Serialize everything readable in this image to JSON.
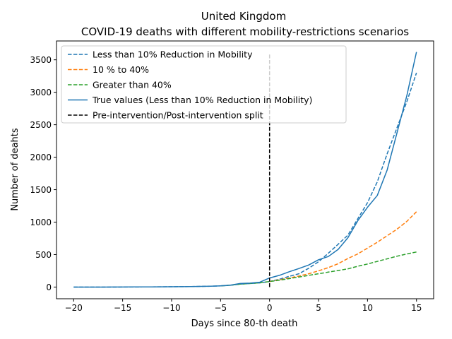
{
  "chart_data": {
    "type": "line",
    "title": "United Kingdom",
    "subtitle": "COVID-19 deaths with different mobility-restrictions scenarios",
    "xlabel": "Days since 80-th death",
    "ylabel": "Number of deahts",
    "xlim": [
      -21.75,
      16.75
    ],
    "ylim": [
      -180,
      3790
    ],
    "xticks": [
      -20,
      -15,
      -10,
      -5,
      0,
      5,
      10,
      15
    ],
    "yticks": [
      0,
      500,
      1000,
      1500,
      2000,
      2500,
      3000,
      3500
    ],
    "grid": false,
    "legend_position": "top-left",
    "series": [
      {
        "name": "Less than 10% Reduction in  Mobility",
        "color": "#1f77b4",
        "dash": "dashed",
        "x": [
          -20,
          -19,
          -18,
          -17,
          -16,
          -15,
          -14,
          -13,
          -12,
          -11,
          -10,
          -9,
          -8,
          -7,
          -6,
          -5,
          -4,
          -3,
          -2,
          -1,
          0,
          1,
          2,
          3,
          4,
          5,
          6,
          7,
          8,
          9,
          10,
          11,
          12,
          13,
          14,
          15
        ],
        "values": [
          0,
          0,
          0,
          0,
          0,
          1,
          1,
          2,
          3,
          4,
          5,
          6,
          8,
          10,
          12,
          18,
          28,
          45,
          55,
          65,
          85,
          120,
          165,
          205,
          290,
          390,
          520,
          660,
          800,
          1050,
          1300,
          1620,
          2050,
          2450,
          2850,
          3300
        ]
      },
      {
        "name": "10 % to 40%",
        "color": "#ff7f0e",
        "dash": "dashed",
        "x": [
          0,
          1,
          2,
          3,
          4,
          5,
          6,
          7,
          8,
          9,
          10,
          11,
          12,
          13,
          14,
          15
        ],
        "values": [
          85,
          110,
          140,
          170,
          205,
          250,
          300,
          360,
          440,
          510,
          600,
          690,
          790,
          890,
          1010,
          1160
        ]
      },
      {
        "name": "Greater than 40%",
        "color": "#2ca02c",
        "dash": "dashed",
        "x": [
          -5,
          -4,
          -3,
          -2,
          -1,
          0,
          1,
          2,
          3,
          4,
          5,
          6,
          7,
          8,
          9,
          10,
          11,
          12,
          13,
          14,
          15
        ],
        "values": [
          18,
          28,
          45,
          55,
          65,
          85,
          105,
          130,
          155,
          180,
          205,
          230,
          255,
          280,
          320,
          355,
          395,
          435,
          475,
          510,
          540
        ]
      },
      {
        "name": "True values (Less than 10% Reduction in  Mobility)",
        "color": "#1f77b4",
        "dash": "solid",
        "x": [
          -20,
          -19,
          -18,
          -17,
          -16,
          -15,
          -14,
          -13,
          -12,
          -11,
          -10,
          -9,
          -8,
          -7,
          -6,
          -5,
          -4,
          -3,
          -2,
          -1,
          0,
          1,
          2,
          3,
          4,
          5,
          6,
          7,
          8,
          9,
          10,
          11,
          12,
          13,
          14,
          15
        ],
        "values": [
          0,
          0,
          0,
          0,
          1,
          1,
          2,
          2,
          3,
          4,
          5,
          6,
          8,
          10,
          12,
          18,
          30,
          55,
          60,
          75,
          140,
          180,
          235,
          285,
          340,
          420,
          470,
          580,
          760,
          1020,
          1230,
          1410,
          1800,
          2370,
          2940,
          3620
        ]
      },
      {
        "name": "Pre-intervention/Post-intervention split",
        "color": "#000000",
        "dash": "dashed",
        "x": [
          0,
          0
        ],
        "values": [
          0,
          3580
        ]
      }
    ]
  }
}
